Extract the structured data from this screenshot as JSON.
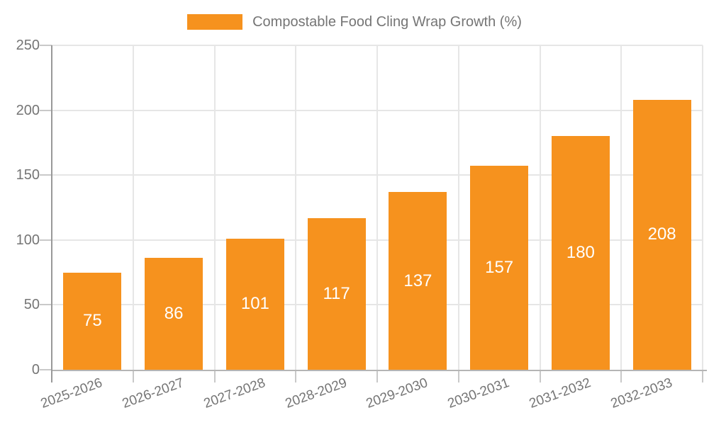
{
  "chart_data": {
    "type": "bar",
    "title": "Compostable Food Cling Wrap Growth (%)",
    "legend": [
      "Compostable Food Cling Wrap Growth (%)"
    ],
    "legend_position": "top",
    "categories": [
      "2025-2026",
      "2026-2027",
      "2027-2028",
      "2028-2029",
      "2029-2030",
      "2030-2031",
      "2031-2032",
      "2032-2033"
    ],
    "values": [
      75,
      86,
      101,
      117,
      137,
      157,
      180,
      208
    ],
    "xlabel": "",
    "ylabel": "",
    "ylim": [
      0,
      250
    ],
    "yticks": [
      0,
      50,
      100,
      150,
      200,
      250
    ],
    "grid": true,
    "x_tick_rotation_deg": -20,
    "colors": {
      "bar": "#f6921e",
      "value_label": "#ffffff",
      "axis_text": "#757575",
      "gridline": "#e6e6e6",
      "y_axis_line": "#999999",
      "x_axis_line": "#b5b5b5",
      "tick": "#c9c9c9",
      "background": "#ffffff"
    }
  }
}
